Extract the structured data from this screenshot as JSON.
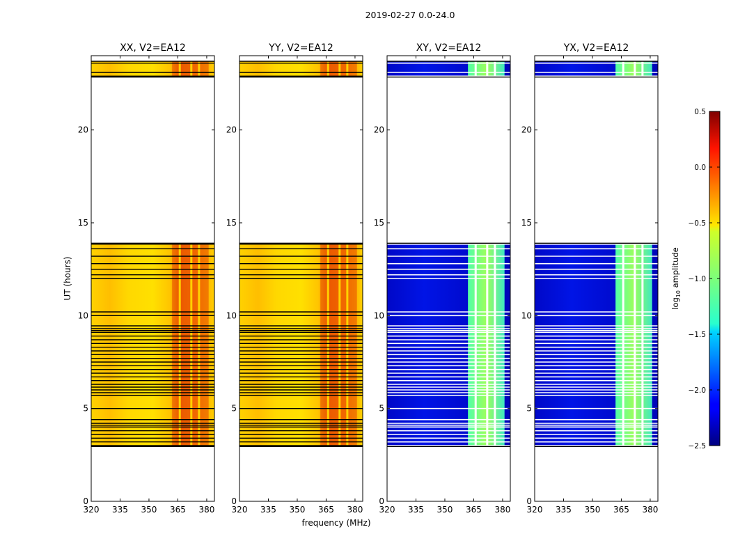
{
  "figure": {
    "suptitle": "2019-02-27 0.0-24.0",
    "xlabel": "frequency (MHz)",
    "ylabel": "UT (hours)",
    "colorbar_label_main": "log",
    "colorbar_label_sub": "10",
    "colorbar_label_tail": " amplitude"
  },
  "chart_data": {
    "type": "heatmap",
    "xlim": [
      320,
      384
    ],
    "ylim": [
      0,
      24
    ],
    "xticks": [
      320,
      335,
      350,
      365,
      380
    ],
    "yticks": [
      0,
      5,
      10,
      15,
      20
    ],
    "colorbar": {
      "colormap": "jet",
      "range": [
        -2.5,
        0.5
      ],
      "ticks": [
        0.5,
        0.0,
        -0.5,
        -1.0,
        -1.5,
        -2.0,
        -2.5
      ],
      "tick_labels": [
        "0.5",
        "0.0",
        "−0.5",
        "−1.0",
        "−1.5",
        "−2.0",
        "−2.5"
      ]
    },
    "panels": [
      {
        "title": "XX, V2=EA12",
        "kind": "parallel"
      },
      {
        "title": "YY, V2=EA12",
        "kind": "parallel"
      },
      {
        "title": "XY, V2=EA12",
        "kind": "cross"
      },
      {
        "title": "YX, V2=EA12",
        "kind": "cross"
      }
    ],
    "data_blocks_hours": [
      [
        2.95,
        13.9
      ],
      [
        22.85,
        23.7
      ]
    ],
    "flagged_lines_hours": [
      3.0,
      3.2,
      3.4,
      3.6,
      3.8,
      4.0,
      4.1,
      4.2,
      4.4,
      5.0,
      5.7,
      5.85,
      6.0,
      6.15,
      6.3,
      6.5,
      6.7,
      6.9,
      7.1,
      7.3,
      7.5,
      7.7,
      7.9,
      8.1,
      8.3,
      8.5,
      8.7,
      8.9,
      9.1,
      9.2,
      9.3,
      9.45,
      10.0,
      10.2,
      12.0,
      12.2,
      12.5,
      12.8,
      13.2,
      13.6,
      13.85,
      22.9,
      23.1,
      23.6
    ],
    "rfi_band_mhz": [
      362,
      381
    ],
    "rfi_channel_gaps_mhz": [
      366,
      372,
      376
    ]
  }
}
